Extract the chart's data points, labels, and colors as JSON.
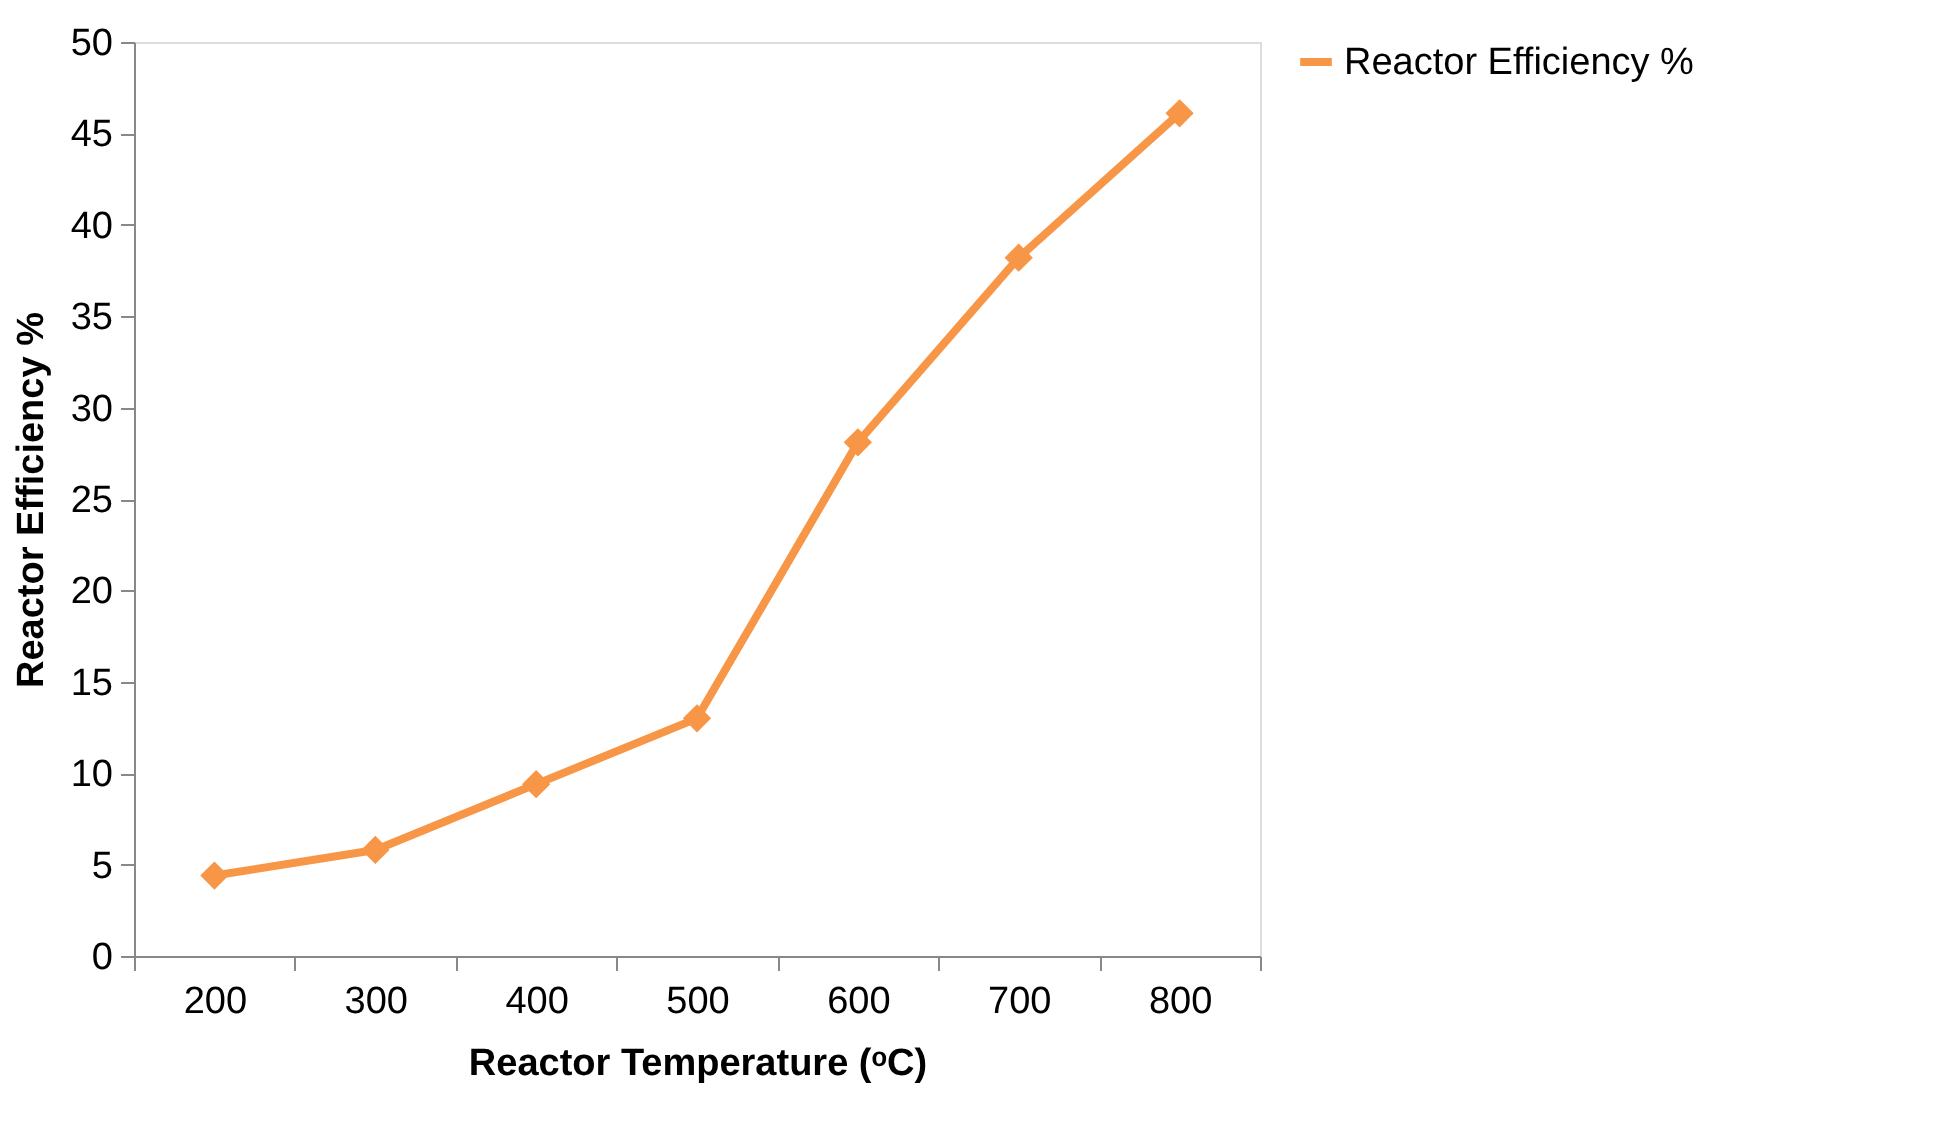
{
  "chart_data": {
    "type": "line",
    "xlabel": "Reactor Temperature (ᵒC)",
    "ylabel": "Reactor Efficiency %",
    "categories": [
      "200",
      "300",
      "400",
      "500",
      "600",
      "700",
      "800"
    ],
    "series": [
      {
        "name": "Reactor Efficiency %",
        "color": "#f79646",
        "values": [
          4.4,
          5.8,
          9.4,
          13.0,
          28.1,
          38.2,
          46.1
        ]
      }
    ],
    "ylim": [
      0,
      50
    ],
    "yticks": [
      0,
      5,
      10,
      15,
      20,
      25,
      30,
      35,
      40,
      45,
      50
    ],
    "grid": false,
    "legend": "right",
    "marker": "diamond",
    "line_style": "solid"
  }
}
